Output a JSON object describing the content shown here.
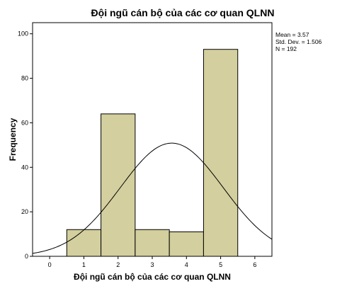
{
  "chart_data": {
    "type": "bar",
    "title": "Đội ngũ cán bộ của các cơ quan QLNN",
    "xlabel": "Đội ngũ cán bộ của các cơ quan QLNN",
    "ylabel": "Frequency",
    "xlim": [
      -0.5,
      6.5
    ],
    "ylim": [
      0,
      105
    ],
    "x_ticks": [
      "0",
      "1",
      "2",
      "3",
      "4",
      "5",
      "6"
    ],
    "y_ticks": [
      "0",
      "20",
      "40",
      "60",
      "80",
      "100"
    ],
    "bin_width": 1,
    "categories": [
      "1",
      "2",
      "3",
      "4",
      "5"
    ],
    "values": [
      12,
      64,
      12,
      11,
      93
    ],
    "bar_color": "#d3cf9e",
    "curve": {
      "type": "normal",
      "mean": 3.57,
      "sd": 1.506,
      "n": 192
    },
    "stats": [
      "Mean = 3.57",
      "Std. Dev. = 1.506",
      "N = 192"
    ],
    "grid": false,
    "legend": "none"
  }
}
